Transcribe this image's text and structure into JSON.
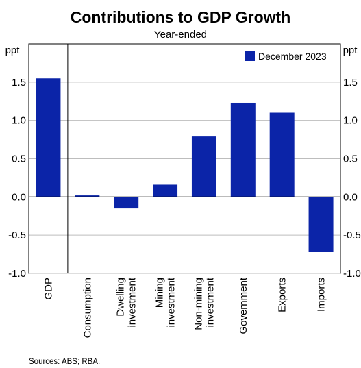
{
  "chart_data": {
    "type": "bar",
    "title": "Contributions to GDP Growth",
    "subtitle": "Year-ended",
    "ylabel_left": "ppt",
    "ylabel_right": "ppt",
    "ylim": [
      -1.0,
      2.0
    ],
    "yticks": [
      -1.0,
      -0.5,
      0.0,
      0.5,
      1.0,
      1.5
    ],
    "ytick_labels": [
      "-1.0",
      "-0.5",
      "0.0",
      "0.5",
      "1.0",
      "1.5"
    ],
    "categories": [
      [
        "GDP"
      ],
      [
        "Consumption"
      ],
      [
        "Dwelling",
        "investment"
      ],
      [
        "Mining",
        "investment"
      ],
      [
        "Non-mining",
        "investment"
      ],
      [
        "Government"
      ],
      [
        "Exports"
      ],
      [
        "Imports"
      ]
    ],
    "series": [
      {
        "name": "December 2023",
        "color": "#0B24A8",
        "values": [
          1.55,
          0.02,
          -0.15,
          0.16,
          0.79,
          1.23,
          1.1,
          -0.72
        ]
      }
    ],
    "legend_position": "top-right",
    "grid": "horizontal",
    "source": "Sources: ABS; RBA."
  }
}
